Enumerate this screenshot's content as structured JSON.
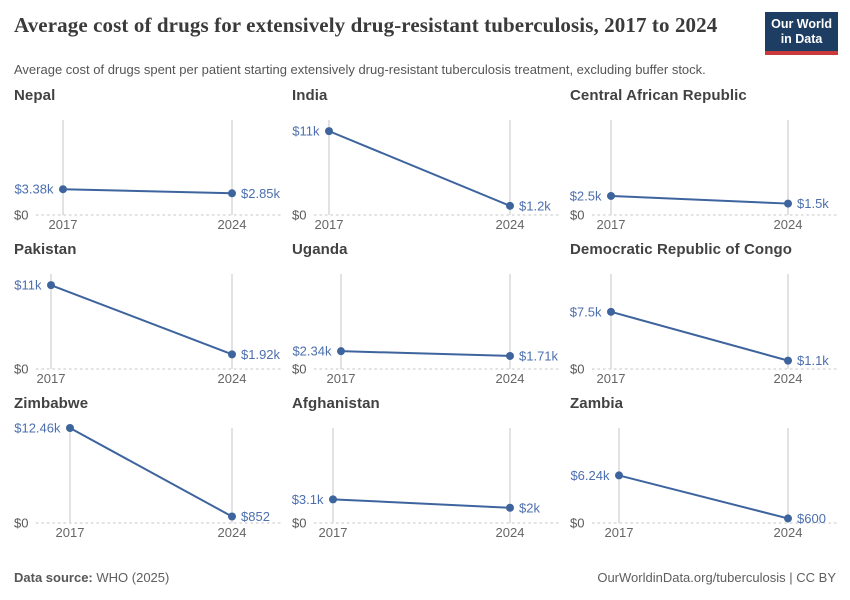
{
  "header": {
    "title": "Average cost of drugs for extensively drug-resistant tuberculosis, 2017 to 2024",
    "subtitle": "Average cost of drugs spent per patient starting extensively drug-resistant tuberculosis treatment, excluding buffer stock.",
    "logo_line1": "Our World",
    "logo_line2": "in Data"
  },
  "chart_data": {
    "type": "line",
    "x": [
      2017,
      2024
    ],
    "x_tick_labels": [
      "2017",
      "2024"
    ],
    "shared_ylim": [
      0,
      12460
    ],
    "zero_label": "$0",
    "grid": "zero-baseline-dotted, vertical-year-gridlines",
    "legend_position": "none",
    "ylabel": "",
    "xlabel": "",
    "facets": [
      {
        "title": "Nepal",
        "values": [
          3380,
          2850
        ],
        "labels": [
          "$3.38k",
          "$2.85k"
        ]
      },
      {
        "title": "India",
        "values": [
          11000,
          1200
        ],
        "labels": [
          "$11k",
          "$1.2k"
        ]
      },
      {
        "title": "Central African Republic",
        "values": [
          2500,
          1500
        ],
        "labels": [
          "$2.5k",
          "$1.5k"
        ]
      },
      {
        "title": "Pakistan",
        "values": [
          11000,
          1920
        ],
        "labels": [
          "$11k",
          "$1.92k"
        ]
      },
      {
        "title": "Uganda",
        "values": [
          2340,
          1710
        ],
        "labels": [
          "$2.34k",
          "$1.71k"
        ]
      },
      {
        "title": "Democratic Republic of Congo",
        "values": [
          7500,
          1100
        ],
        "labels": [
          "$7.5k",
          "$1.1k"
        ]
      },
      {
        "title": "Zimbabwe",
        "values": [
          12460,
          852
        ],
        "labels": [
          "$12.46k",
          "$852"
        ]
      },
      {
        "title": "Afghanistan",
        "values": [
          3100,
          2000
        ],
        "labels": [
          "$3.1k",
          "$2k"
        ]
      },
      {
        "title": "Zambia",
        "values": [
          6240,
          600
        ],
        "labels": [
          "$6.24k",
          "$600"
        ]
      }
    ]
  },
  "footer": {
    "source_label": "Data source:",
    "source_value": "WHO (2025)",
    "right_text": "OurWorldinData.org/tuberculosis | CC BY"
  },
  "colors": {
    "line": "#3e649e",
    "point": "#3e649e",
    "value_label": "#4d6fae",
    "gridline": "#c4c4c4",
    "zero_dotted": "#d8d8d8",
    "logo_navy": "#1d3d63",
    "logo_red": "#cb3a3a"
  }
}
